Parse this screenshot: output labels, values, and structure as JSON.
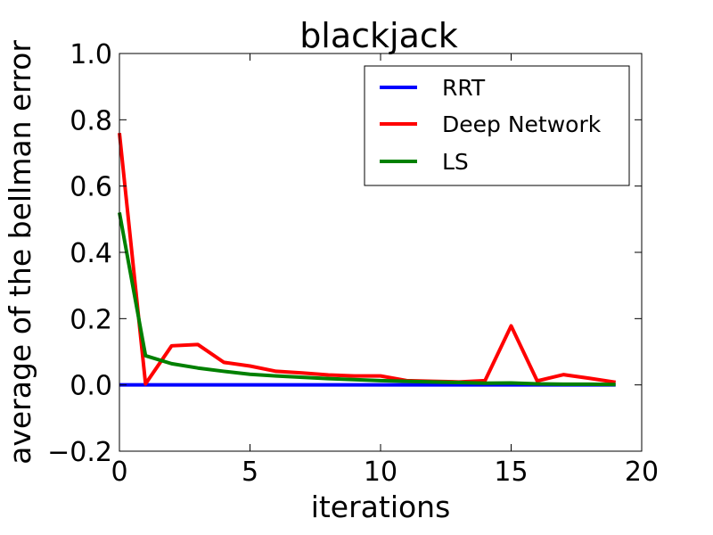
{
  "chart_data": {
    "type": "line",
    "title": "blackjack",
    "xlabel": "iterations",
    "ylabel": "average of the bellman error",
    "xlim": [
      0,
      20
    ],
    "ylim": [
      -0.2,
      1.0
    ],
    "xticks": [
      0,
      5,
      10,
      15,
      20
    ],
    "xtick_labels": [
      "0",
      "5",
      "10",
      "15",
      "20"
    ],
    "yticks": [
      -0.2,
      0.0,
      0.2,
      0.4,
      0.6,
      0.8,
      1.0
    ],
    "ytick_labels": [
      "−0.2",
      "0.0",
      "0.2",
      "0.4",
      "0.6",
      "0.8",
      "1.0"
    ],
    "grid": false,
    "legend_position": "top-right",
    "x": [
      0,
      1,
      2,
      3,
      4,
      5,
      6,
      7,
      8,
      9,
      10,
      11,
      12,
      13,
      14,
      15,
      16,
      17,
      18,
      19
    ],
    "series": [
      {
        "name": "RRT",
        "color": "#0000ff",
        "values": [
          0,
          0,
          0,
          0,
          0,
          0,
          0,
          0,
          0,
          0,
          0,
          0,
          0,
          0,
          0,
          0,
          0,
          0,
          0,
          0
        ]
      },
      {
        "name": "Deep Network",
        "color": "#ff0000",
        "values": [
          0.76,
          0.003,
          0.118,
          0.122,
          0.068,
          0.057,
          0.041,
          0.036,
          0.03,
          0.027,
          0.027,
          0.013,
          0.011,
          0.009,
          0.013,
          0.178,
          0.012,
          0.031,
          0.02,
          0.008
        ]
      },
      {
        "name": "LS",
        "color": "#008000",
        "values": [
          0.52,
          0.088,
          0.064,
          0.051,
          0.041,
          0.032,
          0.027,
          0.023,
          0.019,
          0.016,
          0.013,
          0.011,
          0.009,
          0.007,
          0.005,
          0.006,
          0.003,
          0.002,
          0.002,
          0.001
        ]
      }
    ]
  }
}
